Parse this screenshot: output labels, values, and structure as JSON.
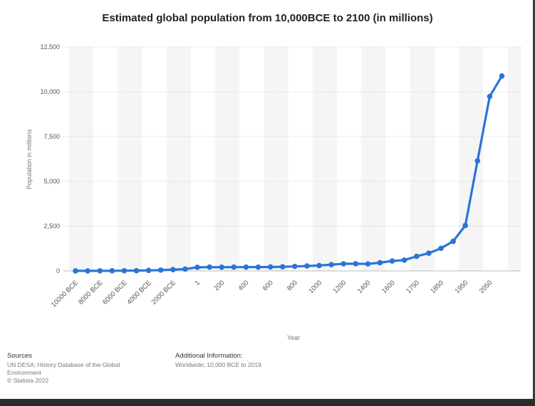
{
  "chart_data": {
    "type": "line",
    "title": "Estimated global population from 10,000BCE to 2100 (in millions)",
    "xlabel": "Year",
    "ylabel": "Population in millions",
    "ylim": [
      0,
      12500
    ],
    "yticks": [
      "0",
      "2,500",
      "5,000",
      "7,500",
      "10,000",
      "12,500"
    ],
    "ytick_values": [
      0,
      2500,
      5000,
      7500,
      10000,
      12500
    ],
    "grid": "horizontal dotted",
    "x_tick_labels": [
      "10000 BCE",
      "8000 BCE",
      "6000 BCE",
      "4000 BCE",
      "2000 BCE",
      "1",
      "200",
      "400",
      "600",
      "800",
      "1000",
      "1200",
      "1400",
      "1600",
      "1750",
      "1850",
      "1950",
      "2050"
    ],
    "series": [
      {
        "color": "#2a74d8",
        "values": [
          2,
          4,
          5,
          7,
          10,
          14,
          27,
          45,
          72,
          100,
          200,
          210,
          205,
          210,
          210,
          213,
          220,
          230,
          250,
          275,
          300,
          350,
          395,
          400,
          390,
          460,
          554,
          603,
          813,
          990,
          1260,
          1650,
          2536,
          6145,
          9735,
          10875
        ]
      }
    ],
    "line_color": "#2a74d8"
  },
  "footer": {
    "sources_heading": "Sources",
    "sources_line1": "UN DESA; History Database of the Global",
    "sources_line2": "Environment",
    "sources_line3": "© Statista 2022",
    "additional_heading": "Additional Information:",
    "additional_line1": "Worldwide; 10,000 BCE to 2019"
  }
}
